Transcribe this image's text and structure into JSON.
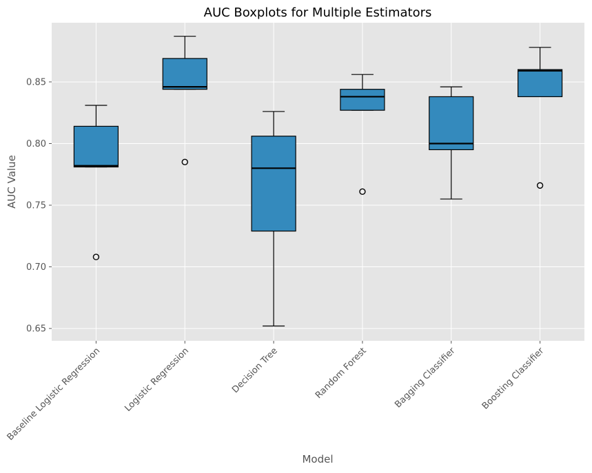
{
  "chart_data": {
    "type": "boxplot",
    "title": "AUC Boxplots for Multiple Estimators",
    "xlabel": "Model",
    "ylabel": "AUC Value",
    "ylim": [
      0.64,
      0.898
    ],
    "yticks": [
      "0.65",
      "0.70",
      "0.75",
      "0.80",
      "0.85"
    ],
    "grid": true,
    "categories": [
      "Baseline Logistic Regression",
      "Logistic Regression",
      "Decision Tree",
      "Random Forest",
      "Bagging Classifier",
      "Boosting Classifier"
    ],
    "boxes": [
      {
        "whisker_low": 0.781,
        "q1": 0.781,
        "median": 0.782,
        "q3": 0.814,
        "whisker_high": 0.831,
        "outliers": [
          0.708
        ]
      },
      {
        "whisker_low": 0.844,
        "q1": 0.844,
        "median": 0.846,
        "q3": 0.869,
        "whisker_high": 0.887,
        "outliers": [
          0.785
        ]
      },
      {
        "whisker_low": 0.652,
        "q1": 0.729,
        "median": 0.78,
        "q3": 0.806,
        "whisker_high": 0.826,
        "outliers": []
      },
      {
        "whisker_low": 0.827,
        "q1": 0.827,
        "median": 0.838,
        "q3": 0.844,
        "whisker_high": 0.856,
        "outliers": [
          0.761
        ]
      },
      {
        "whisker_low": 0.755,
        "q1": 0.795,
        "median": 0.8,
        "q3": 0.838,
        "whisker_high": 0.846,
        "outliers": []
      },
      {
        "whisker_low": 0.838,
        "q1": 0.838,
        "median": 0.859,
        "q3": 0.86,
        "whisker_high": 0.878,
        "outliers": [
          0.766
        ]
      }
    ],
    "colors": {
      "box_fill": "#348abd",
      "plot_background": "#e5e5e5",
      "grid": "#ffffff",
      "edge": "#000000"
    }
  }
}
